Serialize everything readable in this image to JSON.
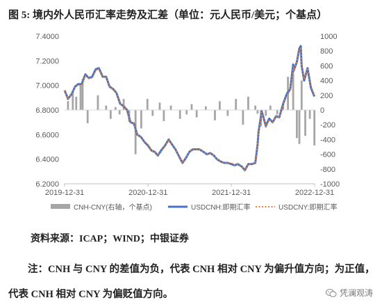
{
  "figure": {
    "title": "图 5: 境内外人民币汇率走势及汇差（单位：元人民币/美元；个基点）",
    "source": "资料来源：ICAP；WIND；中银证券",
    "note": "注：CNH 与 CNY 的差值为负，代表 CNH 相对 CNY 为偏升值方向；为正值，代表 CNH 相对 CNY 为偏贬值方向。",
    "watermark": "凭澜观涛",
    "watermark_icon": "wechat-icon"
  },
  "chart_data": {
    "type": "line",
    "x_tick_labels": [
      "2019-12-31",
      "2020-12-31",
      "2021-12-31",
      "2022-12-31"
    ],
    "x_range": [
      "2019-12-31",
      "2022-12-31"
    ],
    "left_axis": {
      "ylim": [
        6.2,
        7.4
      ],
      "ticks": [
        "6.2000",
        "6.4000",
        "6.6000",
        "6.8000",
        "7.0000",
        "7.2000",
        "7.4000"
      ]
    },
    "right_axis": {
      "ylim": [
        -1000,
        1000
      ],
      "ticks": [
        "-1000",
        "-800",
        "-600",
        "-400",
        "-200",
        "0",
        "200",
        "400",
        "600",
        "800",
        "1000"
      ]
    },
    "grid": false,
    "legend_position": "bottom",
    "legend": [
      "CNH-CNY(右轴，个基点)",
      "USDCNH:即期汇率",
      "USDCNY:即期汇率"
    ],
    "colors": {
      "spread": "#a6a6a6",
      "usdcnh": "#4472c4",
      "usdcny": "#ed7d31"
    },
    "usd_series_dates": [
      "2019-12-31",
      "2020-01-15",
      "2020-01-31",
      "2020-02-15",
      "2020-02-28",
      "2020-03-15",
      "2020-03-31",
      "2020-04-15",
      "2020-04-30",
      "2020-05-15",
      "2020-05-29",
      "2020-06-15",
      "2020-06-30",
      "2020-07-15",
      "2020-07-31",
      "2020-08-14",
      "2020-08-31",
      "2020-09-15",
      "2020-09-30",
      "2020-10-15",
      "2020-10-30",
      "2020-11-13",
      "2020-11-30",
      "2020-12-15",
      "2020-12-31",
      "2021-01-15",
      "2021-01-29",
      "2021-02-12",
      "2021-02-26",
      "2021-03-15",
      "2021-03-31",
      "2021-04-15",
      "2021-04-30",
      "2021-05-14",
      "2021-05-31",
      "2021-06-15",
      "2021-06-30",
      "2021-07-15",
      "2021-07-30",
      "2021-08-13",
      "2021-08-31",
      "2021-09-15",
      "2021-09-30",
      "2021-10-15",
      "2021-10-29",
      "2021-11-15",
      "2021-11-30",
      "2021-12-15",
      "2021-12-31",
      "2022-01-14",
      "2022-01-28",
      "2022-02-15",
      "2022-02-28",
      "2022-03-15",
      "2022-03-31",
      "2022-04-15",
      "2022-04-25",
      "2022-04-29",
      "2022-05-13",
      "2022-05-31",
      "2022-06-15",
      "2022-06-30",
      "2022-07-15",
      "2022-07-29",
      "2022-08-15",
      "2022-08-31",
      "2022-09-15",
      "2022-09-28",
      "2022-09-30",
      "2022-10-14",
      "2022-10-25",
      "2022-10-31",
      "2022-11-04",
      "2022-11-15",
      "2022-11-30",
      "2022-12-15",
      "2022-12-30"
    ],
    "usdcnh": [
      6.96,
      6.89,
      6.93,
      6.99,
      7.01,
      7.01,
      7.09,
      7.06,
      7.07,
      7.13,
      7.14,
      7.07,
      7.07,
      6.99,
      6.97,
      6.94,
      6.85,
      6.83,
      6.8,
      6.7,
      6.69,
      6.6,
      6.58,
      6.54,
      6.51,
      6.47,
      6.46,
      6.43,
      6.47,
      6.51,
      6.56,
      6.52,
      6.48,
      6.43,
      6.37,
      6.41,
      6.46,
      6.48,
      6.48,
      6.48,
      6.46,
      6.44,
      6.45,
      6.43,
      6.4,
      6.38,
      6.37,
      6.37,
      6.36,
      6.35,
      6.36,
      6.34,
      6.31,
      6.36,
      6.36,
      6.37,
      6.52,
      6.62,
      6.79,
      6.67,
      6.73,
      6.7,
      6.75,
      6.74,
      6.85,
      6.93,
      6.97,
      7.17,
      7.12,
      7.19,
      7.3,
      7.32,
      7.16,
      7.04,
      7.14,
      6.98,
      6.91
    ],
    "usdcny": [
      6.96,
      6.89,
      6.93,
      6.99,
      7.0,
      7.0,
      7.08,
      7.06,
      7.06,
      7.12,
      7.13,
      7.07,
      7.07,
      6.99,
      6.97,
      6.94,
      6.85,
      6.83,
      6.8,
      6.7,
      6.69,
      6.6,
      6.58,
      6.54,
      6.52,
      6.47,
      6.46,
      6.43,
      6.46,
      6.51,
      6.56,
      6.52,
      6.48,
      6.43,
      6.37,
      6.41,
      6.46,
      6.48,
      6.48,
      6.48,
      6.46,
      6.44,
      6.45,
      6.43,
      6.4,
      6.38,
      6.37,
      6.37,
      6.37,
      6.35,
      6.36,
      6.34,
      6.31,
      6.36,
      6.36,
      6.37,
      6.51,
      6.61,
      6.78,
      6.66,
      6.72,
      6.7,
      6.75,
      6.74,
      6.84,
      6.92,
      6.96,
      7.15,
      7.12,
      7.19,
      7.29,
      7.3,
      7.16,
      7.05,
      7.14,
      6.99,
      6.92
    ],
    "spread_dates": [
      "2020-01-15",
      "2020-02-05",
      "2020-02-20",
      "2020-03-10",
      "2020-03-19",
      "2020-04-10",
      "2020-05-25",
      "2020-06-30",
      "2020-07-20",
      "2020-08-10",
      "2020-08-28",
      "2020-09-15",
      "2020-10-09",
      "2020-11-06",
      "2020-12-01",
      "2020-12-28",
      "2021-01-20",
      "2021-02-20",
      "2021-03-10",
      "2021-04-10",
      "2021-05-20",
      "2021-06-18",
      "2021-07-10",
      "2021-08-01",
      "2021-09-10",
      "2021-10-20",
      "2021-11-10",
      "2021-12-15",
      "2022-01-20",
      "2022-02-20",
      "2022-03-15",
      "2022-04-15",
      "2022-04-25",
      "2022-05-10",
      "2022-05-31",
      "2022-06-20",
      "2022-07-20",
      "2022-08-15",
      "2022-09-05",
      "2022-09-28",
      "2022-10-14",
      "2022-10-25",
      "2022-11-04",
      "2022-11-20",
      "2022-12-10",
      "2022-12-30"
    ],
    "spread": [
      120,
      250,
      180,
      330,
      420,
      -180,
      200,
      60,
      -120,
      40,
      -60,
      150,
      -160,
      -600,
      -250,
      150,
      -80,
      100,
      -150,
      60,
      -120,
      -60,
      80,
      -100,
      50,
      -140,
      120,
      -80,
      150,
      -200,
      180,
      60,
      -50,
      -220,
      -80,
      60,
      -60,
      90,
      450,
      560,
      -380,
      -460,
      400,
      -350,
      -120,
      -480
    ]
  }
}
